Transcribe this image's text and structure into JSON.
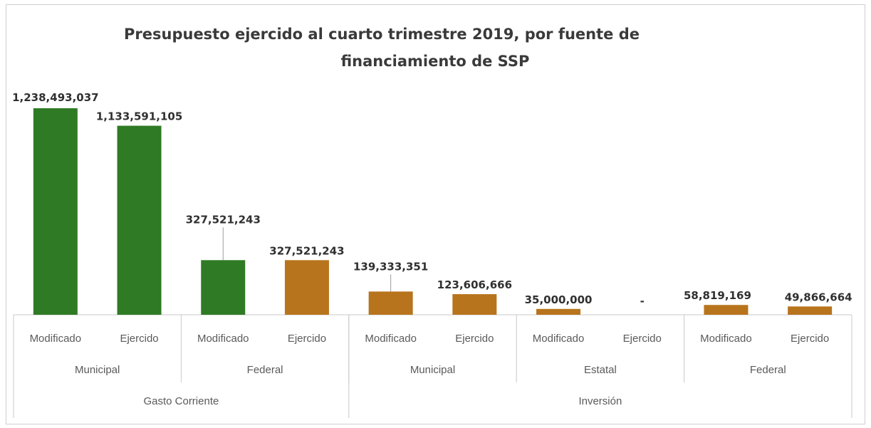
{
  "chart_data": {
    "type": "bar",
    "title": "Presupuesto ejercido al cuarto trimestre 2019, por fuente de financiamiento de SSP",
    "title_lines": [
      "Presupuesto ejercido al cuarto trimestre 2019, por fuente de",
      "financiamiento de SSP"
    ],
    "xlabel": "",
    "ylabel": "",
    "grid": false,
    "legend": "none",
    "colors": {
      "green": "#2f7a24",
      "orange": "#b8741d",
      "axis": "#c8c8c8"
    },
    "categories": [
      "Modificado",
      "Ejercido",
      "Modificado",
      "Ejercido",
      "Modificado",
      "Ejercido",
      "Modificado",
      "Ejercido",
      "Modificado",
      "Ejercido"
    ],
    "values": [
      1238493037,
      1133591105,
      327521243,
      327521243,
      139333351,
      123606666,
      35000000,
      0,
      58819169,
      49866664
    ],
    "data_labels": [
      "1,238,493,037",
      "1,133,591,105",
      "327,521,243",
      "327,521,243",
      "139,333,351",
      "123,606,666",
      "35,000,000",
      "-",
      "58,819,169",
      "49,866,664"
    ],
    "bar_colors": [
      "green",
      "green",
      "green",
      "orange",
      "orange",
      "orange",
      "orange",
      "orange",
      "orange",
      "orange"
    ],
    "groups_level2": [
      {
        "label": "Municipal",
        "span": 2
      },
      {
        "label": "Federal",
        "span": 2
      },
      {
        "label": "Municipal",
        "span": 2
      },
      {
        "label": "Estatal",
        "span": 2
      },
      {
        "label": "Federal",
        "span": 2
      }
    ],
    "groups_level3": [
      {
        "label": "Gasto Corriente",
        "span": 4
      },
      {
        "label": "Inversión",
        "span": 6
      }
    ]
  }
}
